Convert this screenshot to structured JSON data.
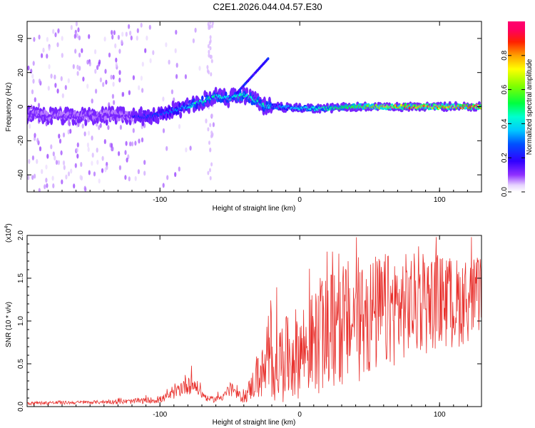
{
  "figure": {
    "title": "C2E1.2026.044.04.57.E30"
  },
  "colorbar": {
    "label": "Normalized spectral amplitude",
    "ticks": [
      "0.0",
      "0.2",
      "0.4",
      "0.6",
      "0.8"
    ],
    "tick_values": [
      0.0,
      0.2,
      0.4,
      0.6,
      0.8
    ],
    "range": [
      0,
      1
    ],
    "colors": [
      "#ffffff",
      "#e0c8ff",
      "#a040ff",
      "#5000ff",
      "#0000ff",
      "#00a0ff",
      "#00ffff",
      "#00ff80",
      "#00ff00",
      "#a0ff00",
      "#ffff00",
      "#ffa000",
      "#ff0000",
      "#ff0080",
      "#ff0060"
    ]
  },
  "chart_data": [
    {
      "type": "heatmap",
      "name": "spectrogram",
      "xlabel": "Height of straight line (km)",
      "ylabel": "Frequency (Hz)",
      "xlim": [
        -195,
        130
      ],
      "ylim": [
        -50,
        50
      ],
      "x_ticks": [
        -100,
        0,
        100
      ],
      "x_tick_labels": [
        "-100",
        "0",
        "100"
      ],
      "y_ticks": [
        -40,
        -20,
        0,
        20,
        40
      ],
      "y_tick_labels": [
        "-40",
        "-20",
        "0",
        "20",
        "40"
      ],
      "ridge": {
        "description": "dominant frequency ridge",
        "x": [
          -195,
          -160,
          -140,
          -120,
          -100,
          -90,
          -80,
          -70,
          -60,
          -50,
          -40,
          -30,
          -25,
          -20,
          0,
          20,
          40,
          60,
          80,
          100,
          130
        ],
        "y": [
          -5,
          -6,
          -5,
          -6,
          -5,
          -2,
          0,
          3,
          6,
          5,
          7,
          3,
          0,
          0,
          -1,
          -1,
          0,
          0,
          0,
          0,
          0
        ]
      }
    },
    {
      "type": "line",
      "name": "snr",
      "xlabel": "Height of straight line (km)",
      "ylabel": "SNR (10 * v/v)",
      "multiplier_label": "(x10",
      "multiplier_exp": "4",
      "multiplier_close": ")",
      "xlim": [
        -195,
        130
      ],
      "ylim": [
        0,
        2
      ],
      "x_ticks": [
        -100,
        0,
        100
      ],
      "x_tick_labels": [
        "-100",
        "0",
        "100"
      ],
      "y_ticks": [
        0,
        0.5,
        1,
        1.5,
        2
      ],
      "y_tick_labels": [
        "0.0",
        "0.5",
        "1.0",
        "1.5",
        "2.0"
      ],
      "color": "#e8302c",
      "envelope_x": [
        -195,
        -150,
        -120,
        -100,
        -90,
        -85,
        -80,
        -75,
        -70,
        -65,
        -60,
        -55,
        -50,
        -45,
        -40,
        -35,
        -30,
        -25,
        -20,
        -10,
        0,
        10,
        20,
        30,
        40,
        50,
        60,
        70,
        80,
        90,
        100,
        110,
        120,
        130
      ],
      "envelope_y": [
        0.04,
        0.05,
        0.06,
        0.08,
        0.15,
        0.22,
        0.28,
        0.25,
        0.15,
        0.08,
        0.09,
        0.12,
        0.2,
        0.14,
        0.1,
        0.22,
        0.35,
        0.4,
        0.5,
        0.55,
        0.65,
        0.75,
        0.85,
        0.95,
        1.0,
        1.05,
        1.1,
        1.15,
        1.2,
        1.2,
        1.25,
        1.2,
        1.25,
        1.3
      ],
      "spread": [
        0.02,
        0.02,
        0.03,
        0.04,
        0.06,
        0.1,
        0.14,
        0.1,
        0.06,
        0.03,
        0.04,
        0.05,
        0.1,
        0.06,
        0.06,
        0.15,
        0.25,
        0.35,
        0.45,
        0.5,
        0.55,
        0.6,
        0.7,
        0.75,
        0.75,
        0.72,
        0.7,
        0.65,
        0.6,
        0.6,
        0.55,
        0.55,
        0.5,
        0.45
      ]
    }
  ]
}
